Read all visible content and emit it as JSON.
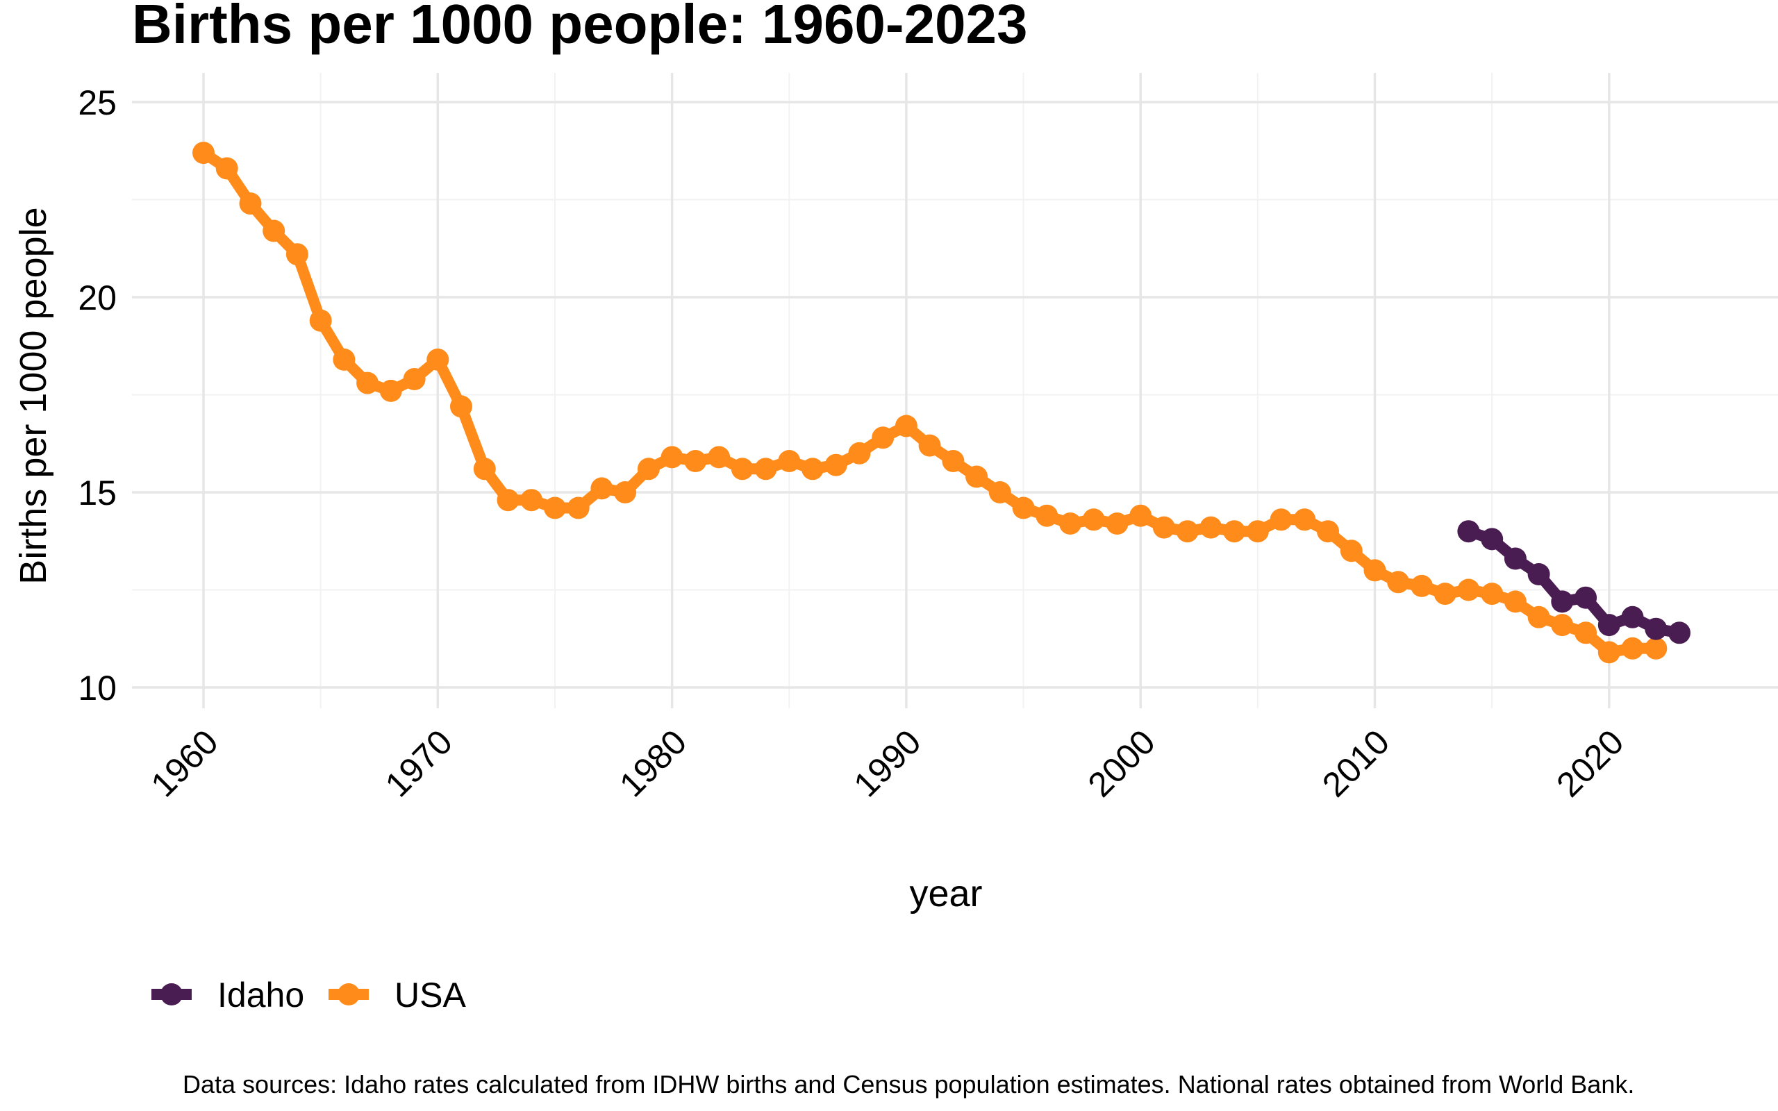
{
  "chart_data": {
    "type": "line",
    "title": "Births per 1000 people: 1960-2023",
    "xlabel": "year",
    "ylabel": "Births per 1000 people",
    "xlim": [
      1960,
      2023
    ],
    "ylim": [
      10,
      25
    ],
    "x_ticks": [
      1960,
      1970,
      1980,
      1990,
      2000,
      2010,
      2020
    ],
    "y_ticks": [
      10,
      15,
      20,
      25
    ],
    "grid": true,
    "legend_position": "bottom-left",
    "series": [
      {
        "name": "Idaho",
        "color": "#4a1d52",
        "x": [
          2014,
          2015,
          2016,
          2017,
          2018,
          2019,
          2020,
          2021,
          2022,
          2023
        ],
        "values": [
          14.0,
          13.8,
          13.3,
          12.9,
          12.2,
          12.3,
          11.6,
          11.8,
          11.5,
          11.4
        ]
      },
      {
        "name": "USA",
        "color": "#ff8c1a",
        "x": [
          1960,
          1961,
          1962,
          1963,
          1964,
          1965,
          1966,
          1967,
          1968,
          1969,
          1970,
          1971,
          1972,
          1973,
          1974,
          1975,
          1976,
          1977,
          1978,
          1979,
          1980,
          1981,
          1982,
          1983,
          1984,
          1985,
          1986,
          1987,
          1988,
          1989,
          1990,
          1991,
          1992,
          1993,
          1994,
          1995,
          1996,
          1997,
          1998,
          1999,
          2000,
          2001,
          2002,
          2003,
          2004,
          2005,
          2006,
          2007,
          2008,
          2009,
          2010,
          2011,
          2012,
          2013,
          2014,
          2015,
          2016,
          2017,
          2018,
          2019,
          2020,
          2021,
          2022
        ],
        "values": [
          23.7,
          23.3,
          22.4,
          21.7,
          21.1,
          19.4,
          18.4,
          17.8,
          17.6,
          17.9,
          18.4,
          17.2,
          15.6,
          14.8,
          14.8,
          14.6,
          14.6,
          15.1,
          15.0,
          15.6,
          15.9,
          15.8,
          15.9,
          15.6,
          15.6,
          15.8,
          15.6,
          15.7,
          16.0,
          16.4,
          16.7,
          16.2,
          15.8,
          15.4,
          15.0,
          14.6,
          14.4,
          14.2,
          14.3,
          14.2,
          14.4,
          14.1,
          14.0,
          14.1,
          14.0,
          14.0,
          14.3,
          14.3,
          14.0,
          13.5,
          13.0,
          12.7,
          12.6,
          12.4,
          12.5,
          12.4,
          12.2,
          11.8,
          11.6,
          11.4,
          10.9,
          11.0,
          11.0
        ]
      }
    ],
    "caption": "Data sources: Idaho rates calculated from IDHW births and Census population estimates. National rates obtained from World Bank."
  }
}
